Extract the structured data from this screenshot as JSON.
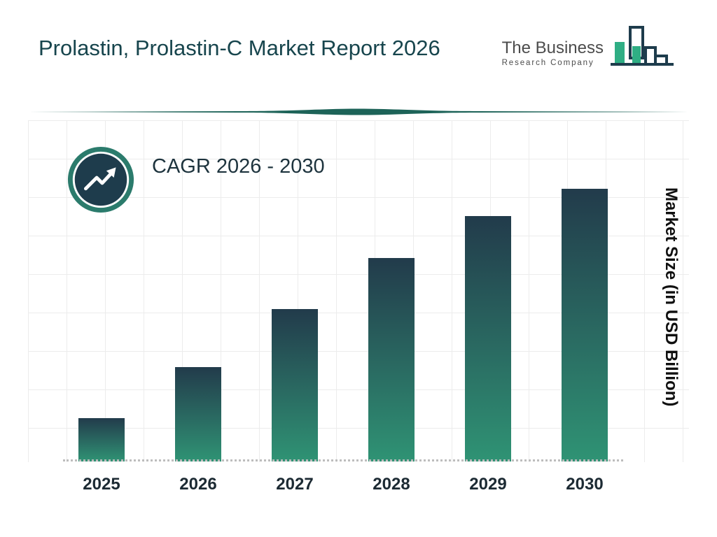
{
  "header": {
    "title": "Prolastin, Prolastin-C Market Report 2026"
  },
  "logo": {
    "line1": "The Business",
    "line2": "Research Company"
  },
  "cagr_label": "CAGR 2026 - 2030",
  "chart_data": {
    "type": "bar",
    "title": "Prolastin, Prolastin-C Market Report 2026",
    "categories": [
      "2025",
      "2026",
      "2027",
      "2028",
      "2029",
      "2030"
    ],
    "values": [
      16,
      34.5,
      56,
      74.5,
      90,
      100
    ],
    "note": "No numeric axis labels shown; values estimated as relative heights (2030 = 100)",
    "xlabel": "",
    "ylabel": "Market Size (in USD Billion)",
    "ylim": [
      0,
      100
    ],
    "grid": true,
    "legend": "none",
    "annotations": [
      "CAGR 2026 - 2030"
    ]
  },
  "colors": {
    "title_text": "#17454d",
    "bar_top": "#223b4b",
    "bar_mid": "#2a6b62",
    "bar_bottom": "#2f9374",
    "accent_teal": "#2b7b6c",
    "icon_navy": "#1e3c4c",
    "logo_green": "#2fae84",
    "gridline": "#ececec"
  }
}
